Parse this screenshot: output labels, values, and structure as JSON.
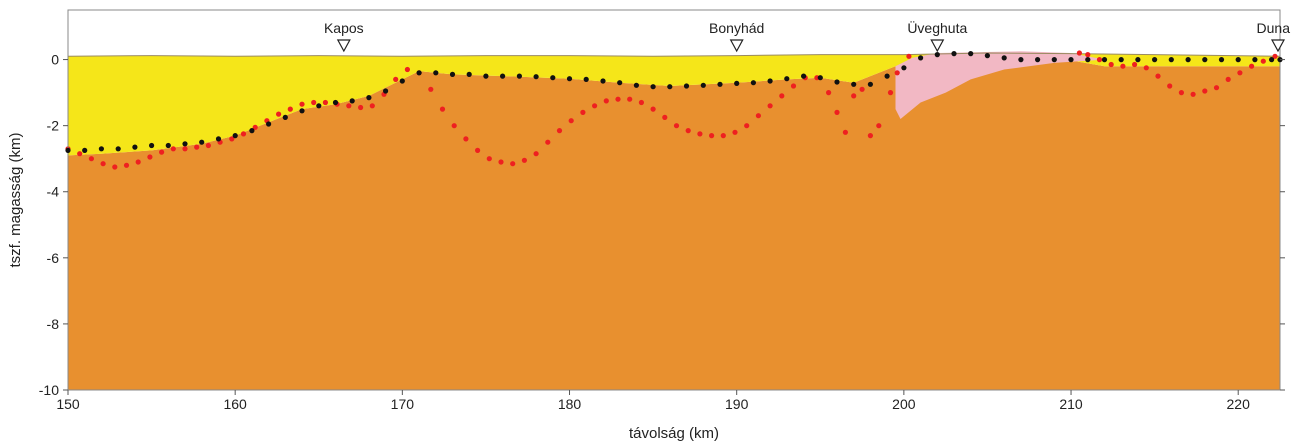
{
  "chart_data": {
    "type": "scatter",
    "title": "",
    "xlabel": "távolság (km)",
    "ylabel": "tszf. magasság (km)",
    "xlim": [
      150,
      222.5
    ],
    "ylim": [
      -10,
      1.5
    ],
    "x_ticks": [
      150,
      160,
      170,
      180,
      190,
      200,
      210,
      220
    ],
    "y_ticks": [
      0,
      -2,
      -4,
      -6,
      -8,
      -10
    ],
    "grid": false,
    "colors": {
      "basement": "#e8902f",
      "sediment": "#f5e619",
      "pink_body": "#f2b8c4",
      "black_points": "#111111",
      "red_points": "#ee2020"
    },
    "locations": [
      {
        "name": "Kapos",
        "x": 166.5
      },
      {
        "name": "Bonyhád",
        "x": 190.0
      },
      {
        "name": "Üveghuta",
        "x": 202.0
      },
      {
        "name": "Duna",
        "x": 222.5
      }
    ],
    "surface": [
      [
        150,
        0.1
      ],
      [
        155,
        0.12
      ],
      [
        160,
        0.1
      ],
      [
        165,
        0.12
      ],
      [
        170,
        0.1
      ],
      [
        175,
        0.12
      ],
      [
        180,
        0.12
      ],
      [
        185,
        0.1
      ],
      [
        190,
        0.12
      ],
      [
        195,
        0.15
      ],
      [
        200,
        0.15
      ],
      [
        205,
        0.2
      ],
      [
        210,
        0.18
      ],
      [
        215,
        0.15
      ],
      [
        222.5,
        0.1
      ]
    ],
    "basement_top": [
      [
        150,
        -2.9
      ],
      [
        152,
        -2.85
      ],
      [
        155,
        -2.75
      ],
      [
        158,
        -2.55
      ],
      [
        160,
        -2.3
      ],
      [
        162,
        -1.9
      ],
      [
        164,
        -1.5
      ],
      [
        166,
        -1.35
      ],
      [
        168,
        -1.1
      ],
      [
        170,
        -0.6
      ],
      [
        171,
        -0.35
      ],
      [
        173,
        -0.45
      ],
      [
        176,
        -0.5
      ],
      [
        180,
        -0.58
      ],
      [
        183,
        -0.7
      ],
      [
        186,
        -0.8
      ],
      [
        190,
        -0.7
      ],
      [
        193,
        -0.6
      ],
      [
        195,
        -0.55
      ],
      [
        197,
        -0.7
      ],
      [
        198,
        -0.5
      ],
      [
        199.5,
        -0.2
      ],
      [
        201,
        0.0
      ],
      [
        204,
        0.15
      ],
      [
        208,
        0.15
      ],
      [
        212,
        -0.2
      ],
      [
        215,
        -0.2
      ],
      [
        218,
        -0.2
      ],
      [
        222.5,
        -0.2
      ]
    ],
    "pink_body": [
      [
        199.5,
        -0.2
      ],
      [
        200.5,
        0.05
      ],
      [
        202,
        0.2
      ],
      [
        207,
        0.25
      ],
      [
        210,
        0.2
      ],
      [
        212,
        0.0
      ],
      [
        209,
        -0.1
      ],
      [
        206,
        -0.3
      ],
      [
        204,
        -0.6
      ],
      [
        202.5,
        -1.0
      ],
      [
        201,
        -1.3
      ],
      [
        199.8,
        -1.8
      ],
      [
        199.5,
        -1.5
      ]
    ],
    "black_points": [
      [
        150,
        -2.75
      ],
      [
        151,
        -2.75
      ],
      [
        152,
        -2.7
      ],
      [
        153,
        -2.7
      ],
      [
        154,
        -2.65
      ],
      [
        155,
        -2.6
      ],
      [
        156,
        -2.6
      ],
      [
        157,
        -2.55
      ],
      [
        158,
        -2.5
      ],
      [
        159,
        -2.4
      ],
      [
        160,
        -2.3
      ],
      [
        161,
        -2.15
      ],
      [
        162,
        -1.95
      ],
      [
        163,
        -1.75
      ],
      [
        164,
        -1.55
      ],
      [
        165,
        -1.4
      ],
      [
        166,
        -1.3
      ],
      [
        167,
        -1.25
      ],
      [
        168,
        -1.15
      ],
      [
        169,
        -0.95
      ],
      [
        170,
        -0.65
      ],
      [
        171,
        -0.4
      ],
      [
        172,
        -0.4
      ],
      [
        173,
        -0.45
      ],
      [
        174,
        -0.45
      ],
      [
        175,
        -0.5
      ],
      [
        176,
        -0.5
      ],
      [
        177,
        -0.5
      ],
      [
        178,
        -0.52
      ],
      [
        179,
        -0.55
      ],
      [
        180,
        -0.58
      ],
      [
        181,
        -0.6
      ],
      [
        182,
        -0.65
      ],
      [
        183,
        -0.7
      ],
      [
        184,
        -0.78
      ],
      [
        185,
        -0.82
      ],
      [
        186,
        -0.82
      ],
      [
        187,
        -0.8
      ],
      [
        188,
        -0.78
      ],
      [
        189,
        -0.75
      ],
      [
        190,
        -0.72
      ],
      [
        191,
        -0.7
      ],
      [
        192,
        -0.65
      ],
      [
        193,
        -0.58
      ],
      [
        194,
        -0.5
      ],
      [
        195,
        -0.55
      ],
      [
        196,
        -0.68
      ],
      [
        197,
        -0.75
      ],
      [
        198,
        -0.75
      ],
      [
        199,
        -0.5
      ],
      [
        200,
        -0.25
      ],
      [
        201,
        0.05
      ],
      [
        202,
        0.15
      ],
      [
        203,
        0.18
      ],
      [
        204,
        0.18
      ],
      [
        205,
        0.12
      ],
      [
        206,
        0.05
      ],
      [
        207,
        0.0
      ],
      [
        208,
        0.0
      ],
      [
        209,
        0.0
      ],
      [
        210,
        0.0
      ],
      [
        211,
        0.0
      ],
      [
        212,
        0.0
      ],
      [
        213,
        0.0
      ],
      [
        214,
        0.0
      ],
      [
        215,
        0.0
      ],
      [
        216,
        0.0
      ],
      [
        217,
        0.0
      ],
      [
        218,
        0.0
      ],
      [
        219,
        0.0
      ],
      [
        220,
        0.0
      ],
      [
        221,
        0.0
      ],
      [
        222,
        0.0
      ],
      [
        222.5,
        0.0
      ]
    ],
    "red_points": [
      [
        150,
        -2.7
      ],
      [
        150.7,
        -2.85
      ],
      [
        151.4,
        -3.0
      ],
      [
        152.1,
        -3.15
      ],
      [
        152.8,
        -3.25
      ],
      [
        153.5,
        -3.2
      ],
      [
        154.2,
        -3.1
      ],
      [
        154.9,
        -2.95
      ],
      [
        155.6,
        -2.8
      ],
      [
        156.3,
        -2.7
      ],
      [
        157,
        -2.7
      ],
      [
        157.7,
        -2.65
      ],
      [
        158.4,
        -2.6
      ],
      [
        159.1,
        -2.5
      ],
      [
        159.8,
        -2.4
      ],
      [
        160.5,
        -2.25
      ],
      [
        161.2,
        -2.05
      ],
      [
        161.9,
        -1.85
      ],
      [
        162.6,
        -1.65
      ],
      [
        163.3,
        -1.5
      ],
      [
        164,
        -1.35
      ],
      [
        164.7,
        -1.3
      ],
      [
        165.4,
        -1.3
      ],
      [
        166.1,
        -1.35
      ],
      [
        166.8,
        -1.4
      ],
      [
        167.5,
        -1.45
      ],
      [
        168.2,
        -1.4
      ],
      [
        168.9,
        -1.05
      ],
      [
        169.6,
        -0.6
      ],
      [
        170.3,
        -0.3
      ],
      [
        171,
        -0.4
      ],
      [
        171.7,
        -0.9
      ],
      [
        172.4,
        -1.5
      ],
      [
        173.1,
        -2.0
      ],
      [
        173.8,
        -2.4
      ],
      [
        174.5,
        -2.75
      ],
      [
        175.2,
        -3.0
      ],
      [
        175.9,
        -3.1
      ],
      [
        176.6,
        -3.15
      ],
      [
        177.3,
        -3.05
      ],
      [
        178,
        -2.85
      ],
      [
        178.7,
        -2.5
      ],
      [
        179.4,
        -2.15
      ],
      [
        180.1,
        -1.85
      ],
      [
        180.8,
        -1.6
      ],
      [
        181.5,
        -1.4
      ],
      [
        182.2,
        -1.25
      ],
      [
        182.9,
        -1.2
      ],
      [
        183.6,
        -1.2
      ],
      [
        184.3,
        -1.3
      ],
      [
        185,
        -1.5
      ],
      [
        185.7,
        -1.75
      ],
      [
        186.4,
        -2.0
      ],
      [
        187.1,
        -2.15
      ],
      [
        187.8,
        -2.25
      ],
      [
        188.5,
        -2.3
      ],
      [
        189.2,
        -2.3
      ],
      [
        189.9,
        -2.2
      ],
      [
        190.6,
        -2.0
      ],
      [
        191.3,
        -1.7
      ],
      [
        192,
        -1.4
      ],
      [
        192.7,
        -1.1
      ],
      [
        193.4,
        -0.8
      ],
      [
        194.1,
        -0.55
      ],
      [
        194.8,
        -0.55
      ],
      [
        195.5,
        -1.0
      ],
      [
        196,
        -1.6
      ],
      [
        196.5,
        -2.2
      ],
      [
        197,
        -1.1
      ],
      [
        197.5,
        -0.9
      ],
      [
        198,
        -2.3
      ],
      [
        198.5,
        -2.0
      ],
      [
        199.2,
        -1.0
      ],
      [
        199.6,
        -0.4
      ],
      [
        200.3,
        0.1
      ],
      [
        210.5,
        0.2
      ],
      [
        211,
        0.15
      ],
      [
        211.7,
        0.0
      ],
      [
        212.4,
        -0.15
      ],
      [
        213.1,
        -0.2
      ],
      [
        213.8,
        -0.15
      ],
      [
        214.5,
        -0.25
      ],
      [
        215.2,
        -0.5
      ],
      [
        215.9,
        -0.8
      ],
      [
        216.6,
        -1.0
      ],
      [
        217.3,
        -1.05
      ],
      [
        218,
        -0.95
      ],
      [
        218.7,
        -0.85
      ],
      [
        219.4,
        -0.6
      ],
      [
        220.1,
        -0.4
      ],
      [
        220.8,
        -0.2
      ],
      [
        221.5,
        -0.05
      ],
      [
        222.2,
        0.1
      ]
    ]
  }
}
